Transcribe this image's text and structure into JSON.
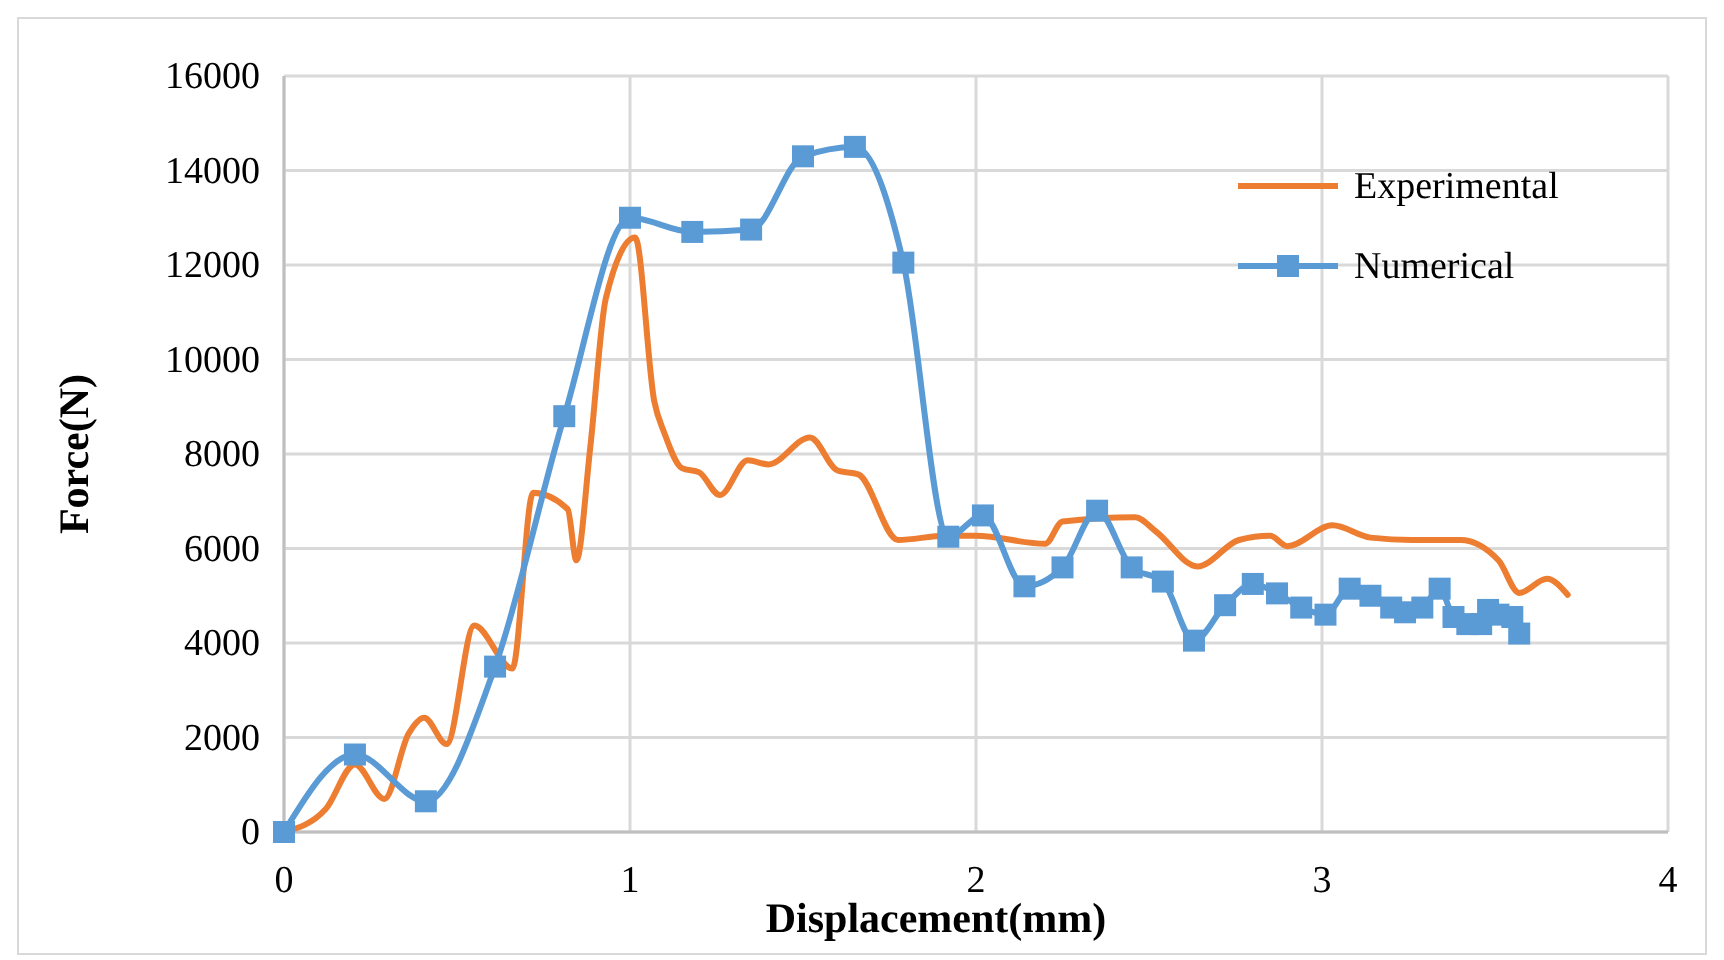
{
  "chart_data": {
    "type": "line",
    "xlabel": "Displacement(mm)",
    "ylabel": "Force(N)",
    "xlim": [
      0,
      4
    ],
    "xticks": [
      0,
      1,
      2,
      3,
      4
    ],
    "ylim": [
      0,
      16000
    ],
    "yticks": [
      0,
      2000,
      4000,
      6000,
      8000,
      10000,
      12000,
      14000,
      16000
    ],
    "grid": true,
    "legend": "top right",
    "series": [
      {
        "name": "Experimental",
        "color": "#ed7d31",
        "marker": "none",
        "x": [
          0,
          0.12,
          0.205,
          0.29,
          0.36,
          0.405,
          0.47,
          0.55,
          0.66,
          0.72,
          0.82,
          0.845,
          0.885,
          0.93,
          1.015,
          1.07,
          1.1,
          1.15,
          1.2,
          1.26,
          1.34,
          1.4,
          1.52,
          1.6,
          1.66,
          1.775,
          1.91,
          2.0,
          2.2,
          2.25,
          2.46,
          2.52,
          2.64,
          2.76,
          2.85,
          2.9,
          3.03,
          3.14,
          3.26,
          3.4,
          3.51,
          3.57,
          3.65,
          3.71
        ],
        "values": [
          0,
          480,
          1430,
          700,
          2080,
          2420,
          1860,
          4370,
          3460,
          7180,
          6830,
          5750,
          8130,
          11290,
          12580,
          9120,
          8430,
          7700,
          7610,
          7130,
          7870,
          7780,
          8350,
          7650,
          7570,
          6180,
          6270,
          6270,
          6100,
          6570,
          6660,
          6360,
          5620,
          6180,
          6270,
          6050,
          6490,
          6230,
          6180,
          6180,
          5750,
          5060,
          5360,
          5020
        ]
      },
      {
        "name": "Numerical",
        "color": "#5b9bd5",
        "marker": "square",
        "x": [
          0,
          0.205,
          0.41,
          0.61,
          0.81,
          1.0,
          1.18,
          1.35,
          1.5,
          1.65,
          1.79,
          1.92,
          2.02,
          2.14,
          2.25,
          2.35,
          2.45,
          2.54,
          2.63,
          2.72,
          2.8,
          2.87,
          2.94,
          3.01,
          3.08,
          3.14,
          3.2,
          3.24,
          3.29,
          3.34,
          3.38,
          3.42,
          3.46,
          3.48,
          3.51,
          3.55,
          3.57
        ],
        "values": [
          0,
          1640,
          650,
          3500,
          8800,
          13000,
          12700,
          12750,
          14300,
          14500,
          12050,
          6250,
          6700,
          5200,
          5600,
          6800,
          5600,
          5300,
          4050,
          4800,
          5250,
          5050,
          4750,
          4600,
          5150,
          5000,
          4750,
          4650,
          4750,
          5150,
          4550,
          4400,
          4400,
          4700,
          4600,
          4550,
          4200
        ]
      }
    ]
  }
}
